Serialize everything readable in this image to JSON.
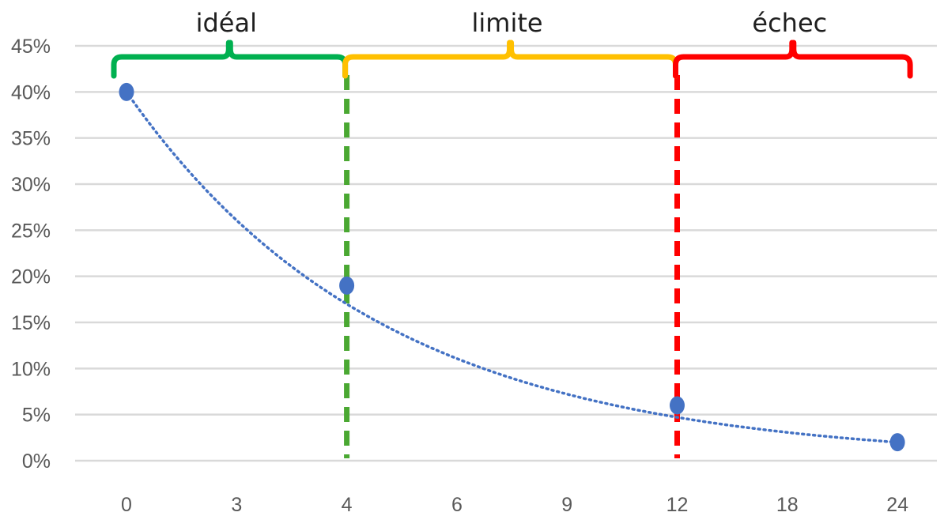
{
  "chart_data": {
    "type": "scatter",
    "x_categories": [
      "0",
      "3",
      "4",
      "6",
      "9",
      "12",
      "18",
      "24"
    ],
    "y_ticks": [
      "0%",
      "5%",
      "10%",
      "15%",
      "20%",
      "25%",
      "30%",
      "35%",
      "40%",
      "45%"
    ],
    "ylim": [
      0,
      45
    ],
    "grid": true,
    "series": [
      {
        "points": [
          {
            "x": "0",
            "y": 40
          },
          {
            "x": "4",
            "y": 19
          },
          {
            "x": "12",
            "y": 6
          },
          {
            "x": "24",
            "y": 2
          }
        ],
        "color": "#4472c4",
        "trendline": "exponential, dotted"
      }
    ],
    "zones": [
      {
        "label": "idéal",
        "from": "0",
        "to": "4",
        "color": "#00b050"
      },
      {
        "label": "limite",
        "from": "4",
        "to": "12",
        "color": "#ffc000"
      },
      {
        "label": "échec",
        "from": "12",
        "to": "24",
        "color": "#ff0000"
      }
    ],
    "thresholds": [
      {
        "x": "4",
        "color": "#4aa832",
        "style": "dashed"
      },
      {
        "x": "12",
        "color": "#ff0000",
        "style": "dashed"
      }
    ]
  }
}
